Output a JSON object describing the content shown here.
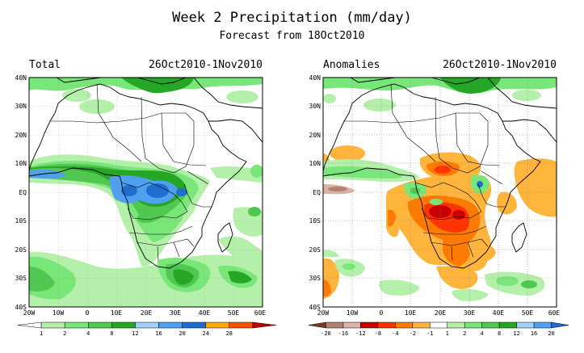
{
  "header": {
    "title": "Week 2 Precipitation (mm/day)",
    "subtitle": "Forecast from 18Oct2010"
  },
  "axes": {
    "x_ticks": [
      "20W",
      "10W",
      "0",
      "10E",
      "20E",
      "30E",
      "40E",
      "50E",
      "60E"
    ],
    "y_ticks": [
      "40N",
      "30N",
      "20N",
      "10N",
      "EQ",
      "10S",
      "20S",
      "30S",
      "40S"
    ],
    "x_range": [
      -20,
      60
    ],
    "y_range": [
      -40,
      40
    ]
  },
  "panels": [
    {
      "id": "total",
      "label": "Total",
      "dates": "26Oct2010-1Nov2010",
      "colorbar": {
        "labels": [
          "1",
          "2",
          "4",
          "8",
          "12",
          "16",
          "20",
          "24",
          "28"
        ],
        "colors": [
          "#ffffff",
          "#b4f0aa",
          "#78e678",
          "#50c850",
          "#25a625",
          "#a0d2ff",
          "#50a0f0",
          "#1e6ed2",
          "#ffaa00",
          "#ff5000",
          "#c00000"
        ]
      }
    },
    {
      "id": "anomalies",
      "label": "Anomalies",
      "dates": "26Oct2010-1Nov2010",
      "colorbar": {
        "labels": [
          "-20",
          "-16",
          "-12",
          "-8",
          "-4",
          "-2",
          "-1",
          "1",
          "2",
          "4",
          "8",
          "12",
          "16",
          "20"
        ],
        "colors": [
          "#7a3a20",
          "#b48070",
          "#dcb4a6",
          "#c80000",
          "#ff3300",
          "#ff7a00",
          "#ffb43c",
          "#ffffff",
          "#b4f0aa",
          "#78e678",
          "#50c850",
          "#25a625",
          "#a0d2ff",
          "#50a0f0",
          "#1e6ed2"
        ]
      }
    }
  ]
}
